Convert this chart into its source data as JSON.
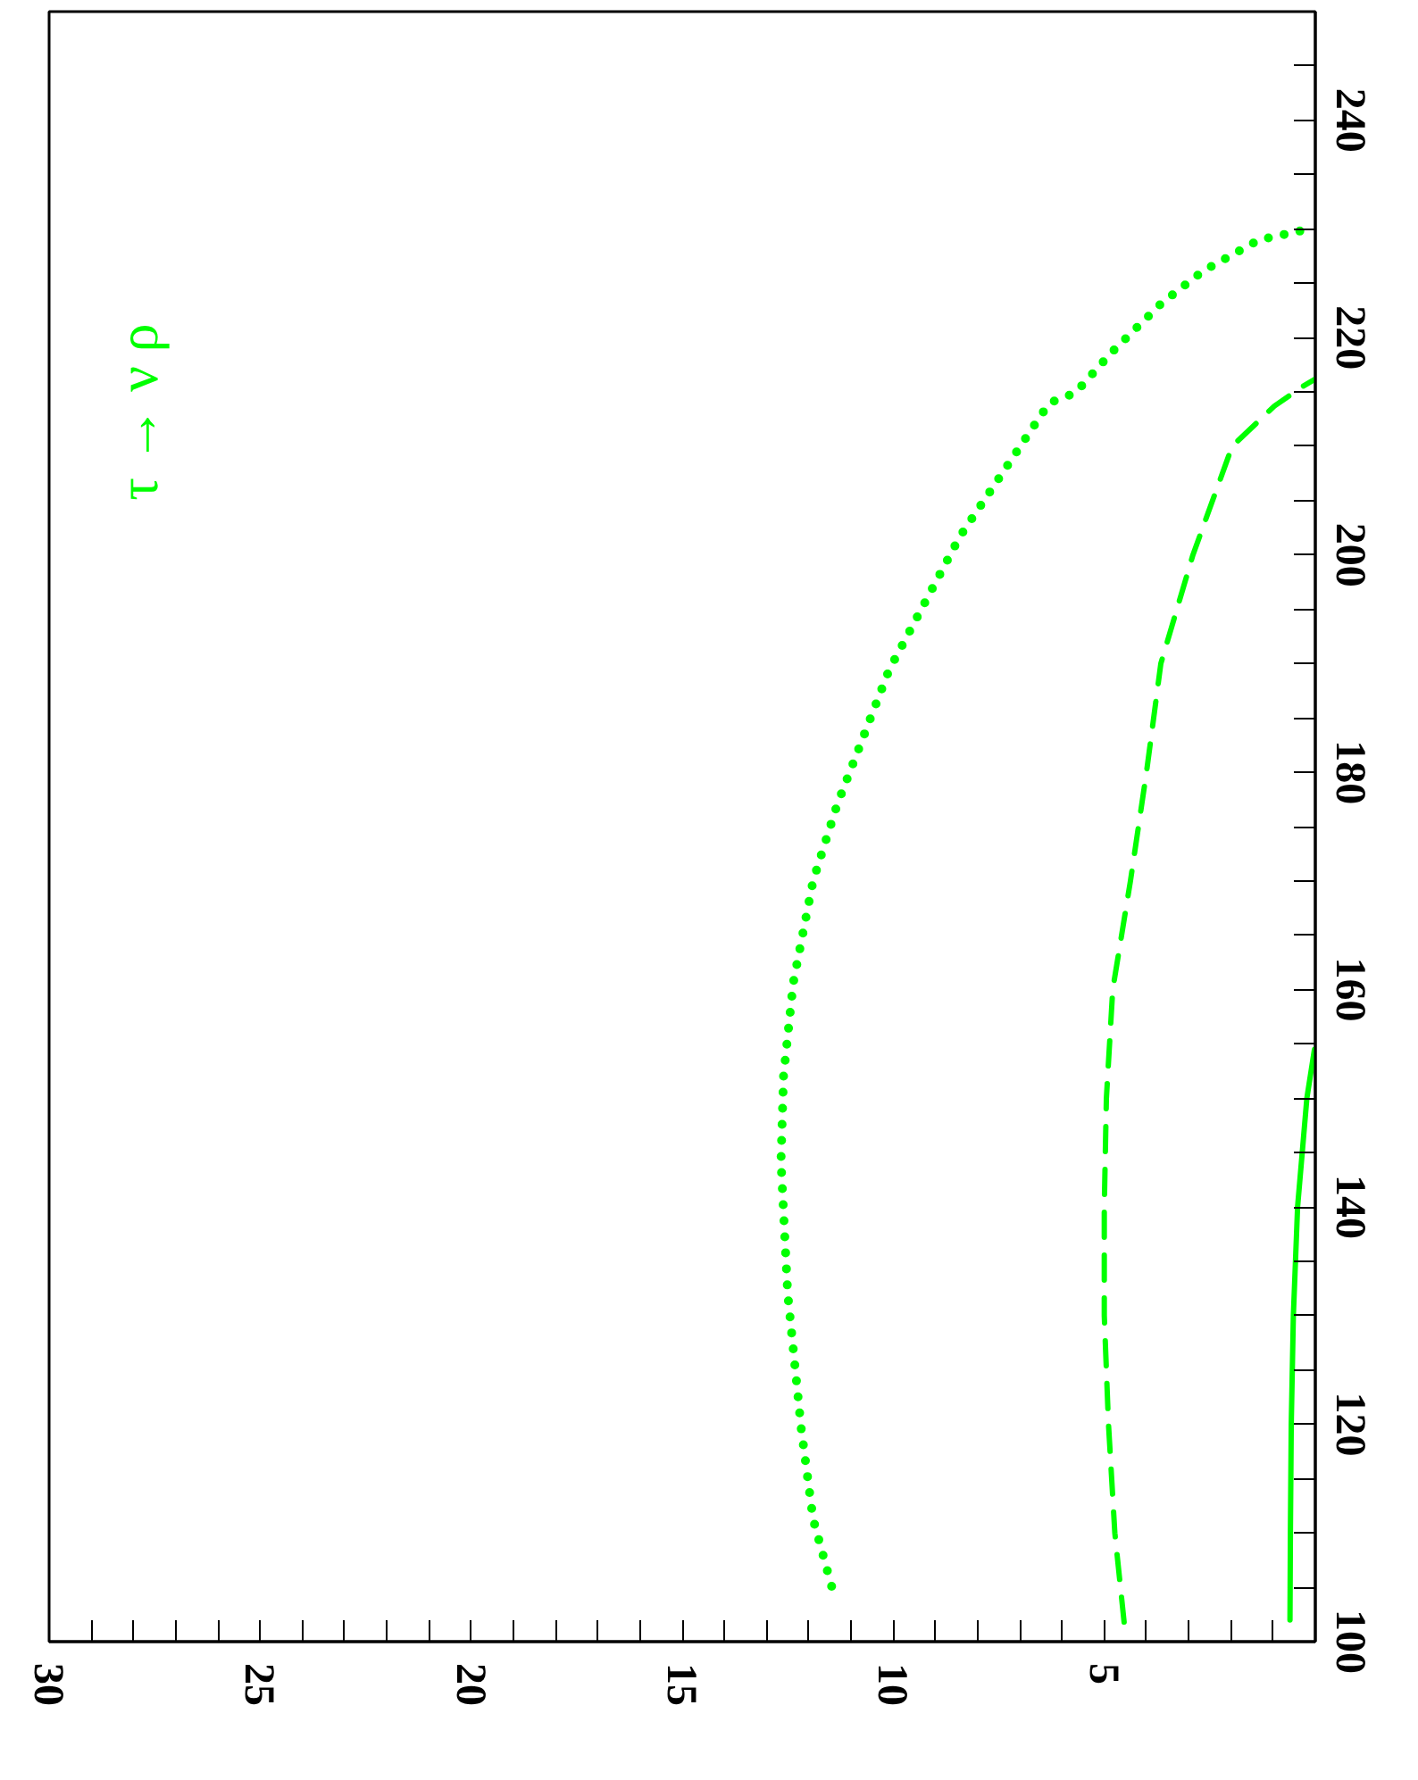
{
  "chart_data": {
    "type": "line",
    "annotations": [
      "τ → ν ρ"
    ],
    "xlim": [
      30,
      0
    ],
    "ylim": [
      100,
      250
    ],
    "xticks": [
      {
        "value": 0,
        "label": null
      },
      {
        "value": 1,
        "label": null
      },
      {
        "value": 2,
        "label": null
      },
      {
        "value": 3,
        "label": null
      },
      {
        "value": 4,
        "label": null
      },
      5,
      {
        "value": 6,
        "label": null
      },
      {
        "value": 7,
        "label": null
      },
      {
        "value": 8,
        "label": null
      },
      {
        "value": 9,
        "label": null
      },
      10,
      {
        "value": 11,
        "label": null
      },
      {
        "value": 12,
        "label": null
      },
      {
        "value": 13,
        "label": null
      },
      {
        "value": 14,
        "label": null
      },
      15,
      {
        "value": 16,
        "label": null
      },
      {
        "value": 17,
        "label": null
      },
      {
        "value": 18,
        "label": null
      },
      {
        "value": 19,
        "label": null
      },
      20,
      {
        "value": 21,
        "label": null
      },
      {
        "value": 22,
        "label": null
      },
      {
        "value": 23,
        "label": null
      },
      {
        "value": 24,
        "label": null
      },
      25,
      {
        "value": 26,
        "label": null
      },
      {
        "value": 27,
        "label": null
      },
      {
        "value": 28,
        "label": null
      },
      {
        "value": 29,
        "label": null
      },
      30
    ],
    "yticks": [
      100,
      {
        "value": 105,
        "label": null
      },
      {
        "value": 110,
        "label": null
      },
      {
        "value": 115,
        "label": null
      },
      120,
      {
        "value": 125,
        "label": null
      },
      {
        "value": 130,
        "label": null
      },
      {
        "value": 135,
        "label": null
      },
      140,
      {
        "value": 145,
        "label": null
      },
      {
        "value": 150,
        "label": null
      },
      {
        "value": 155,
        "label": null
      },
      160,
      {
        "value": 165,
        "label": null
      },
      {
        "value": 170,
        "label": null
      },
      {
        "value": 175,
        "label": null
      },
      180,
      {
        "value": 185,
        "label": null
      },
      {
        "value": 190,
        "label": null
      },
      {
        "value": 195,
        "label": null
      },
      200,
      {
        "value": 205,
        "label": null
      },
      {
        "value": 210,
        "label": null
      },
      {
        "value": 215,
        "label": null
      },
      220,
      {
        "value": 225,
        "label": null
      },
      {
        "value": 230,
        "label": null
      },
      {
        "value": 235,
        "label": null
      },
      240,
      {
        "value": 245,
        "label": null
      },
      {
        "value": 250,
        "label": null
      }
    ],
    "grid": false,
    "marker": "none",
    "series": [
      {
        "color": "#00ff00",
        "line_style": "solid",
        "x": [
          0.6,
          0.59,
          0.57,
          0.52,
          0.42,
          0.2,
          0.02
        ],
        "values": [
          102,
          110,
          120,
          130,
          140,
          150,
          154.5
        ]
      },
      {
        "color": "#00ff00",
        "line_style": "dashed",
        "x": [
          4.53,
          4.75,
          4.9,
          5.0,
          5.0,
          4.95,
          4.8,
          4.38,
          4.0,
          3.66,
          2.9,
          1.97,
          0.97,
          0.3,
          0.0
        ],
        "values": [
          101.8,
          110,
          120,
          130,
          140,
          150,
          160,
          170,
          180,
          190,
          200,
          210,
          213.7,
          215.5,
          216.2
        ]
      },
      {
        "color": "#00ff00",
        "line_style": "dotted",
        "x": [
          11.46,
          11.9,
          12.18,
          12.5,
          12.66,
          12.6,
          12.37,
          11.9,
          11.33,
          10.1,
          8.42,
          6.3,
          5.69,
          4.81,
          3.66,
          2.67,
          1.33,
          0.13
        ],
        "values": [
          105.1,
          111.3,
          119.6,
          132,
          144.2,
          152,
          160.6,
          170,
          177,
          189.4,
          201.7,
          214,
          214.9,
          218.7,
          223.1,
          226.1,
          229,
          230
        ]
      }
    ]
  }
}
